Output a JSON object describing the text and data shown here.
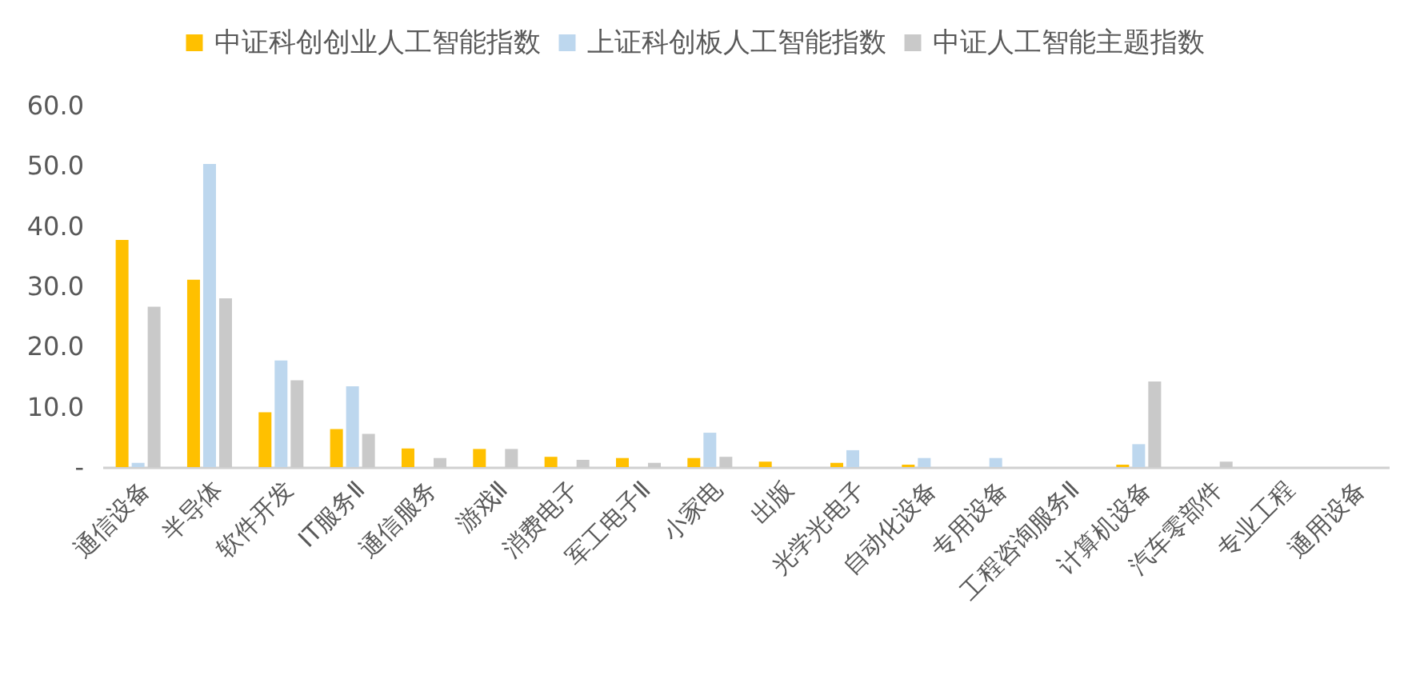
{
  "chart_data": {
    "type": "bar",
    "categories": [
      "通信设备",
      "半导体",
      "软件开发",
      "IT服务Ⅱ",
      "通信服务",
      "游戏Ⅱ",
      "消费电子",
      "军工电子Ⅱ",
      "小家电",
      "出版",
      "光学光电子",
      "自动化设备",
      "专用设备",
      "工程咨询服务Ⅱ",
      "计算机设备",
      "汽车零部件",
      "专业工程",
      "通用设备"
    ],
    "series": [
      {
        "name": "中证科创创业人工智能指数",
        "color": "#ffc000",
        "values": [
          37.7,
          31.1,
          9.1,
          6.3,
          3.1,
          3.0,
          1.7,
          1.5,
          1.5,
          0.9,
          0.7,
          0.4,
          0,
          0,
          0.4,
          0,
          0,
          0
        ]
      },
      {
        "name": "上证科创板人工智能指数",
        "color": "#bdd7ee",
        "values": [
          0.7,
          50.3,
          17.7,
          13.4,
          0,
          0,
          0,
          0,
          5.7,
          0,
          2.8,
          1.5,
          1.5,
          0,
          3.8,
          0,
          0,
          0
        ]
      },
      {
        "name": "中证人工智能主题指数",
        "color": "#c9c9c9",
        "values": [
          26.6,
          28.0,
          14.4,
          5.5,
          1.5,
          3.0,
          1.2,
          0.7,
          1.7,
          0,
          0,
          0,
          0,
          0,
          14.2,
          0.9,
          0,
          0
        ]
      }
    ],
    "ylim": [
      0,
      60
    ],
    "yticks": [
      {
        "value": 0,
        "label": "-"
      },
      {
        "value": 10,
        "label": "10.0"
      },
      {
        "value": 20,
        "label": "20.0"
      },
      {
        "value": 30,
        "label": "30.0"
      },
      {
        "value": 40,
        "label": "40.0"
      },
      {
        "value": 50,
        "label": "50.0"
      },
      {
        "value": 60,
        "label": "60.0"
      }
    ],
    "legend": "top",
    "grid": false
  }
}
